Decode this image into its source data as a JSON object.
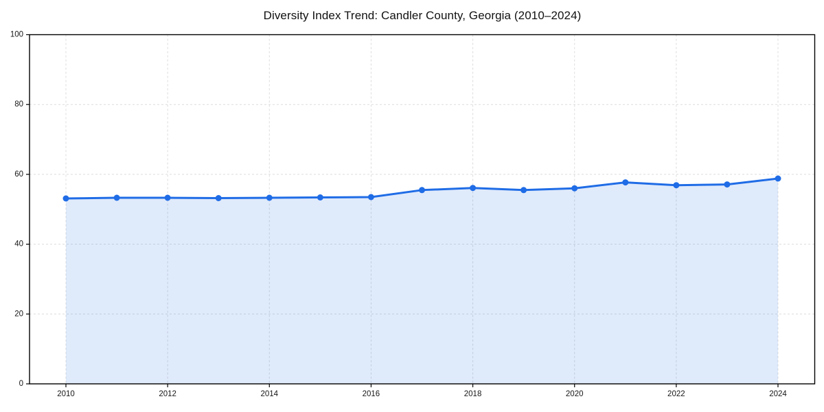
{
  "page": {
    "background_color": "#ffffff"
  },
  "chart_data": {
    "type": "line",
    "title": "Diversity Index Trend: Candler County, Georgia (2010–2024)",
    "xlabel": "",
    "ylabel": "",
    "x": [
      2010,
      2011,
      2012,
      2013,
      2014,
      2015,
      2016,
      2017,
      2018,
      2019,
      2020,
      2021,
      2022,
      2023,
      2024
    ],
    "series": [
      {
        "name": "Diversity Index",
        "values": [
          53.1,
          53.3,
          53.3,
          53.2,
          53.3,
          53.4,
          53.5,
          55.5,
          56.1,
          55.5,
          56.0,
          57.7,
          56.9,
          57.1,
          58.8
        ]
      }
    ],
    "ylim": [
      0,
      100
    ],
    "yticks": [
      0,
      20,
      40,
      60,
      80,
      100
    ],
    "xticks": [
      2010,
      2012,
      2014,
      2016,
      2018,
      2020,
      2022,
      2024
    ],
    "grid": "on",
    "grid_style": "dashed",
    "legend_position": "none",
    "area_fill": true,
    "line_color": "#1f6ce6",
    "marker_color": "#1f6ce6",
    "fill_color": "#1f6ce6",
    "fill_opacity": 0.14,
    "grid_color": "#dcdcdc",
    "axis_color": "#000000",
    "tick_label_color": "#161616",
    "title_color": "#111111"
  }
}
